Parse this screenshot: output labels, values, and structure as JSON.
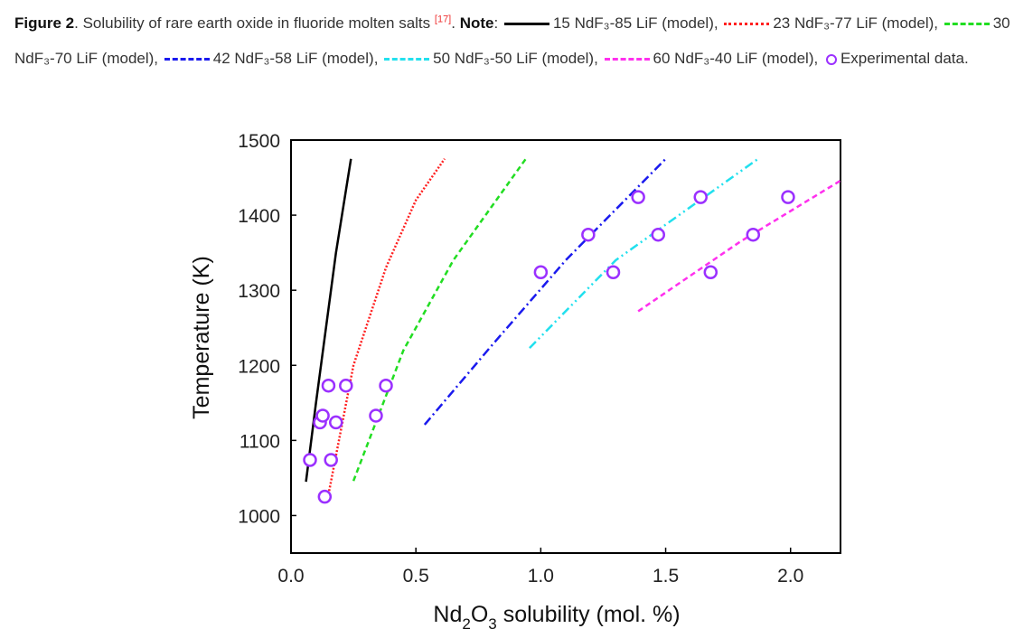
{
  "caption": {
    "fig_label": "Figure 2",
    "text": ". Solubility of rare earth oxide in fluoride molten salts ",
    "ref": "[17]",
    "note_label": "Note",
    "legend": [
      {
        "label": "15 NdF₃-85 LiF (model),",
        "color": "#000000",
        "dash": "solid"
      },
      {
        "label": "23 NdF₃-77 LiF (model),",
        "color": "#ff2020",
        "dash": "dot"
      },
      {
        "label": "30 NdF₃-70 LiF (model),",
        "color": "#22dd22",
        "dash": "dash"
      },
      {
        "label": "42 NdF₃-58 LiF (model),",
        "color": "#1a1aee",
        "dash": "dashdot"
      },
      {
        "label": "50 NdF₃-50 LiF (model),",
        "color": "#22e0ee",
        "dash": "dashdotdot"
      },
      {
        "label": "60 NdF₃-40 LiF (model),",
        "color": "#ff30ee",
        "dash": "dash"
      }
    ],
    "exp_label": "Experimental data."
  },
  "chart_data": {
    "type": "line",
    "xlabel": "Nd2O3 solubility (mol. %)",
    "xlabel_parts": [
      "Nd",
      "2",
      "O",
      "3",
      " solubility (mol. %)"
    ],
    "ylabel": "Temperature (K)",
    "xlim": [
      0,
      2.2
    ],
    "ylim": [
      950,
      1500
    ],
    "xticks": [
      "0.0",
      "0.5",
      "1.0",
      "1.5",
      "2.0"
    ],
    "xtick_values": [
      0,
      0.5,
      1.0,
      1.5,
      2.0
    ],
    "yticks": [
      "1000",
      "1100",
      "1200",
      "1300",
      "1400",
      "1500"
    ],
    "ytick_values": [
      1000,
      1100,
      1200,
      1300,
      1400,
      1500
    ],
    "series": [
      {
        "name": "15 NdF3-85 LiF (model)",
        "color": "#000000",
        "dash": "solid",
        "points": [
          [
            0.06,
            1045
          ],
          [
            0.1,
            1150
          ],
          [
            0.14,
            1250
          ],
          [
            0.18,
            1350
          ],
          [
            0.24,
            1475
          ]
        ]
      },
      {
        "name": "23 NdF3-77 LiF (model)",
        "color": "#ff2020",
        "dash": "dot",
        "points": [
          [
            0.15,
            1028
          ],
          [
            0.25,
            1200
          ],
          [
            0.38,
            1330
          ],
          [
            0.5,
            1420
          ],
          [
            0.615,
            1475
          ]
        ]
      },
      {
        "name": "30 NdF3-70 LiF (model)",
        "color": "#22dd22",
        "dash": "dash",
        "points": [
          [
            0.25,
            1046
          ],
          [
            0.45,
            1220
          ],
          [
            0.65,
            1340
          ],
          [
            0.94,
            1475
          ]
        ]
      },
      {
        "name": "42 NdF3-58 LiF (model)",
        "color": "#1a1aee",
        "dash": "dashdot",
        "points": [
          [
            0.535,
            1121
          ],
          [
            0.8,
            1225
          ],
          [
            1.1,
            1340
          ],
          [
            1.5,
            1475
          ]
        ]
      },
      {
        "name": "50 NdF3-50 LiF (model)",
        "color": "#22e0ee",
        "dash": "dashdotdot",
        "points": [
          [
            0.955,
            1223
          ],
          [
            1.3,
            1340
          ],
          [
            1.87,
            1475
          ]
        ]
      },
      {
        "name": "60 NdF3-40 LiF (model)",
        "color": "#ff30ee",
        "dash": "dash",
        "points": [
          [
            1.39,
            1272
          ],
          [
            1.8,
            1365
          ],
          [
            2.21,
            1448
          ]
        ]
      }
    ],
    "experimental": {
      "name": "Experimental data",
      "color": "#9b30ff",
      "points": [
        [
          0.076,
          1074
        ],
        [
          0.16,
          1074
        ],
        [
          0.135,
          1025
        ],
        [
          0.116,
          1124
        ],
        [
          0.127,
          1133
        ],
        [
          0.18,
          1124
        ],
        [
          0.15,
          1173
        ],
        [
          0.22,
          1173
        ],
        [
          0.38,
          1173
        ],
        [
          0.34,
          1133
        ],
        [
          1.0,
          1324
        ],
        [
          1.19,
          1374
        ],
        [
          1.39,
          1424
        ],
        [
          1.29,
          1324
        ],
        [
          1.47,
          1374
        ],
        [
          1.64,
          1424
        ],
        [
          1.68,
          1324
        ],
        [
          1.85,
          1374
        ],
        [
          1.99,
          1424
        ]
      ]
    }
  }
}
